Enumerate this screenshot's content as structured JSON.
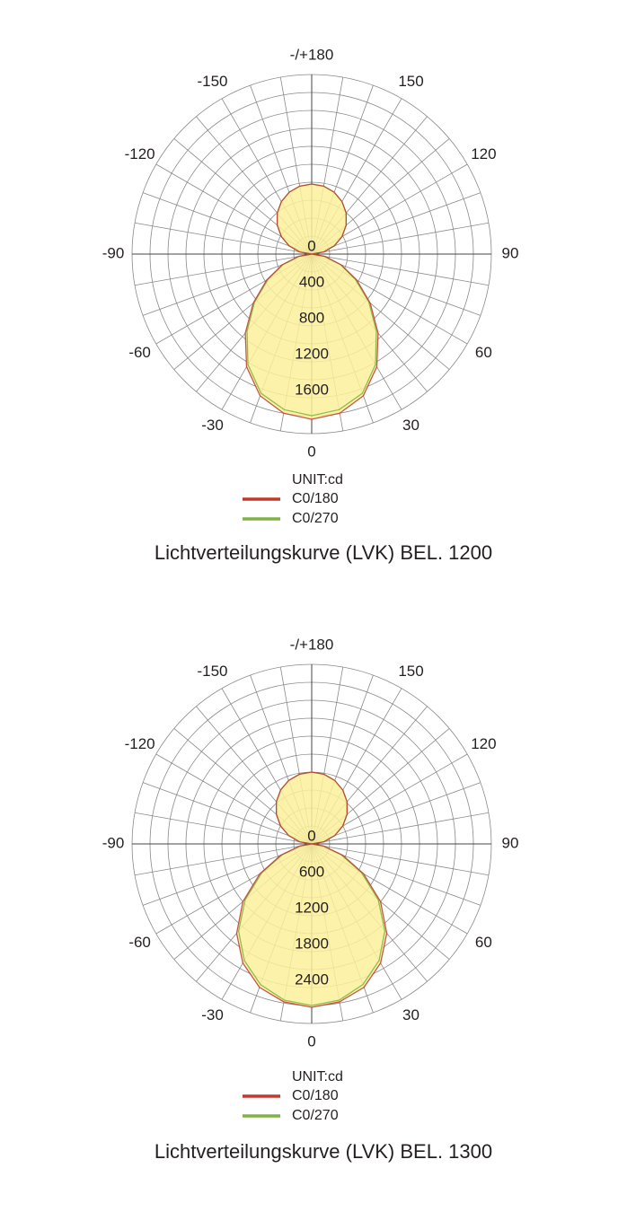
{
  "chart_data": [
    {
      "type": "polar",
      "title": "Lichtverteilungskurve (LVK) BEL. 1200",
      "unit_label": "UNIT:cd",
      "angles": [
        -180,
        -170,
        -160,
        -150,
        -140,
        -130,
        -120,
        -110,
        -100,
        -90,
        -80,
        -70,
        -60,
        -50,
        -40,
        -30,
        -20,
        -10,
        0,
        10,
        20,
        30,
        40,
        50,
        60,
        70,
        80,
        90,
        100,
        110,
        120,
        130,
        140,
        150,
        160,
        170,
        180
      ],
      "series": [
        {
          "name": "C0/270",
          "color": "#7cb342",
          "values": [
            780,
            768,
            733,
            675,
            597,
            501,
            390,
            267,
            135,
            0,
            140,
            340,
            560,
            830,
            1120,
            1420,
            1650,
            1760,
            1800,
            1760,
            1650,
            1420,
            1120,
            830,
            560,
            340,
            140,
            0,
            135,
            267,
            390,
            501,
            597,
            675,
            733,
            768,
            780
          ]
        },
        {
          "name": "C0/180",
          "color": "#c0392b",
          "values": [
            780,
            768,
            733,
            675,
            597,
            501,
            390,
            267,
            135,
            0,
            150,
            350,
            580,
            850,
            1150,
            1450,
            1680,
            1800,
            1840,
            1800,
            1680,
            1450,
            1150,
            850,
            580,
            350,
            150,
            0,
            135,
            267,
            390,
            501,
            597,
            675,
            733,
            768,
            780
          ]
        }
      ],
      "fill_color": "#fbf09a",
      "rlim": [
        0,
        2000
      ],
      "rticks": [
        0,
        400,
        800,
        1200,
        1600
      ],
      "rgrid": [
        200,
        400,
        600,
        800,
        1000,
        1200,
        1400,
        1600,
        1800,
        2000
      ],
      "angle_ticks": [
        0,
        30,
        60,
        90,
        120,
        150,
        {
          "value": 180,
          "label": "-/+180"
        },
        -150,
        -120,
        -90,
        -60,
        -30
      ]
    },
    {
      "type": "polar",
      "title": "Lichtverteilungskurve (LVK) BEL. 1300",
      "unit_label": "UNIT:cd",
      "angles": [
        -180,
        -170,
        -160,
        -150,
        -140,
        -130,
        -120,
        -110,
        -100,
        -90,
        -80,
        -70,
        -60,
        -50,
        -40,
        -30,
        -20,
        -10,
        0,
        10,
        20,
        30,
        40,
        50,
        60,
        70,
        80,
        90,
        100,
        110,
        120,
        130,
        140,
        150,
        160,
        170,
        180
      ],
      "series": [
        {
          "name": "C0/270",
          "color": "#7cb342",
          "values": [
            1200,
            1182,
            1128,
            1039,
            919,
            771,
            600,
            410,
            208,
            0,
            190,
            520,
            960,
            1450,
            1900,
            2250,
            2500,
            2650,
            2700,
            2650,
            2500,
            2250,
            1900,
            1450,
            960,
            520,
            190,
            0,
            208,
            410,
            600,
            771,
            919,
            1039,
            1128,
            1182,
            1200
          ]
        },
        {
          "name": "C0/180",
          "color": "#c0392b",
          "values": [
            1200,
            1182,
            1128,
            1039,
            919,
            771,
            600,
            410,
            208,
            0,
            200,
            550,
            1000,
            1500,
            1950,
            2300,
            2550,
            2680,
            2730,
            2680,
            2550,
            2300,
            1950,
            1500,
            1000,
            550,
            200,
            0,
            208,
            410,
            600,
            771,
            919,
            1039,
            1128,
            1182,
            1200
          ]
        }
      ],
      "fill_color": "#fbf09a",
      "rlim": [
        0,
        3000
      ],
      "rticks": [
        0,
        600,
        1200,
        1800,
        2400
      ],
      "rgrid": [
        300,
        600,
        900,
        1200,
        1500,
        1800,
        2100,
        2400,
        2700,
        3000
      ],
      "angle_ticks": [
        0,
        30,
        60,
        90,
        120,
        150,
        {
          "value": 180,
          "label": "-/+180"
        },
        -150,
        -120,
        -90,
        -60,
        -30
      ]
    }
  ]
}
